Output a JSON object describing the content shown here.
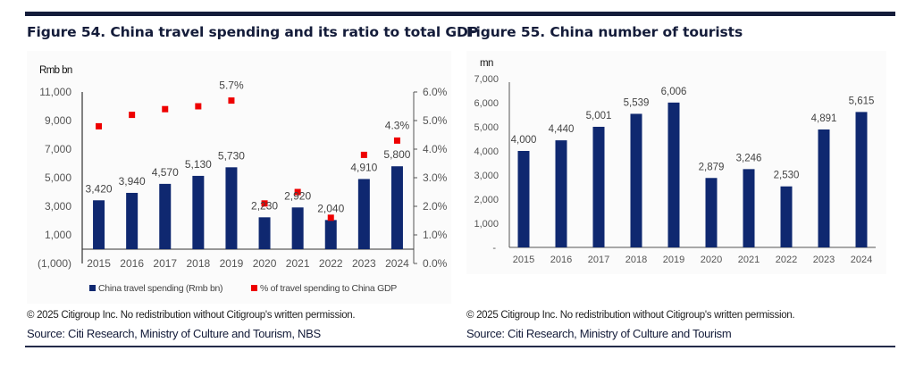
{
  "colors": {
    "bar": "#0f2870",
    "marker": "#ee0000",
    "rule": "#141c3a",
    "title": "#141c3a"
  },
  "chart_data": [
    {
      "type": "bar",
      "title": "Figure 54. China travel spending and its ratio to total GDP",
      "unit_label": "Rmb bn",
      "categories": [
        "2015",
        "2016",
        "2017",
        "2018",
        "2019",
        "2020",
        "2021",
        "2022",
        "2023",
        "2024"
      ],
      "series": [
        {
          "name": "China travel spending (Rmb bn)",
          "type": "bar",
          "axis": "left",
          "values": [
            3420,
            3940,
            4570,
            5130,
            5730,
            2230,
            2920,
            2040,
            4910,
            5800
          ],
          "labels": [
            "3,420",
            "3,940",
            "4,570",
            "5,130",
            "5,730",
            "2,230",
            "2,920",
            "2,040",
            "4,910",
            "5,800"
          ]
        },
        {
          "name": "% of travel spending to China GDP",
          "type": "scatter",
          "axis": "right",
          "values": [
            4.8,
            5.2,
            5.4,
            5.5,
            5.7,
            2.1,
            2.5,
            1.6,
            3.8,
            4.3
          ],
          "labels": [
            "",
            "",
            "",
            "",
            "5.7%",
            "",
            "",
            "",
            "",
            "4.3%"
          ]
        }
      ],
      "y_left": {
        "range": [
          -1000,
          11000
        ],
        "ticks": [
          -1000,
          1000,
          3000,
          5000,
          7000,
          9000,
          11000
        ],
        "tick_labels": [
          "(1,000)",
          "1,000",
          "3,000",
          "5,000",
          "7,000",
          "9,000",
          "11,000"
        ]
      },
      "y_right": {
        "range": [
          0,
          6
        ],
        "ticks": [
          0,
          1,
          2,
          3,
          4,
          5,
          6
        ],
        "tick_labels": [
          "0.0%",
          "1.0%",
          "2.0%",
          "3.0%",
          "4.0%",
          "5.0%",
          "6.0%"
        ]
      },
      "legend": {
        "position": "bottom",
        "items": [
          "China travel spending (Rmb bn)",
          "% of travel spending to China GDP"
        ]
      },
      "grid": false,
      "copyright": "© 2025 Citigroup Inc. No redistribution without Citigroup's written permission.",
      "source": "Source: Citi Research, Ministry of Culture and Tourism, NBS"
    },
    {
      "type": "bar",
      "title": "Figure 55. China number of tourists",
      "unit_label": "mn",
      "categories": [
        "2015",
        "2016",
        "2017",
        "2018",
        "2019",
        "2020",
        "2021",
        "2022",
        "2023",
        "2024"
      ],
      "series": [
        {
          "name": "China number of tourists (mn)",
          "type": "bar",
          "values": [
            4000,
            4440,
            5001,
            5539,
            6006,
            2879,
            3246,
            2530,
            4891,
            5615
          ],
          "labels": [
            "4,000",
            "4,440",
            "5,001",
            "5,539",
            "6,006",
            "2,879",
            "3,246",
            "2,530",
            "4,891",
            "5,615"
          ]
        }
      ],
      "y_left": {
        "range": [
          0,
          7000
        ],
        "ticks": [
          0,
          1000,
          2000,
          3000,
          4000,
          5000,
          6000,
          7000
        ],
        "tick_labels": [
          "-",
          "1,000",
          "2,000",
          "3,000",
          "4,000",
          "5,000",
          "6,000",
          "7,000"
        ]
      },
      "grid": false,
      "copyright": "© 2025 Citigroup Inc. No redistribution without Citigroup's written permission.",
      "source": "Source: Citi Research, Ministry of Culture and Tourism"
    }
  ]
}
